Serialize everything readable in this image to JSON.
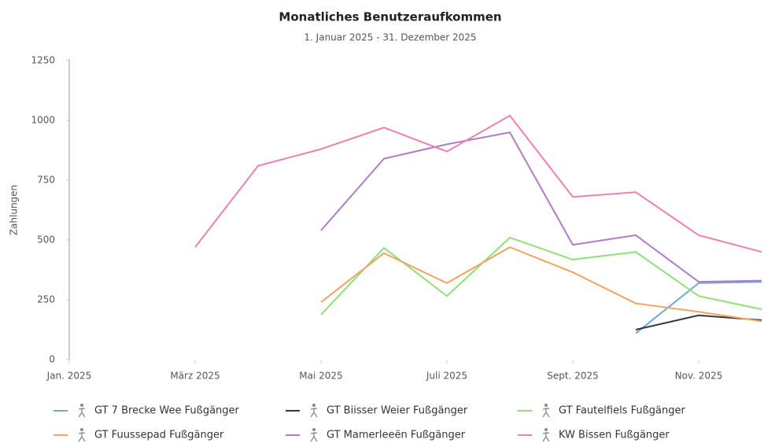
{
  "chart_data": {
    "type": "line",
    "title": "Monatliches Benutzeraufkommen",
    "subtitle": "1. Januar 2025 - 31. Dezember 2025",
    "y_label": "Zahlungen",
    "categories": [
      "Jan. 2025",
      null,
      "März 2025",
      null,
      "Mai 2025",
      null,
      "Juli 2025",
      null,
      "Sept. 2025",
      null,
      "Nov. 2025",
      null
    ],
    "ylim": [
      0,
      1250
    ],
    "yticks": [
      0,
      250,
      500,
      750,
      1000,
      1250
    ],
    "grid": false,
    "series": [
      {
        "name": "GT 7 Brecke Wee Fußgänger",
        "color": "#6fa8dc",
        "values": [
          null,
          null,
          null,
          null,
          null,
          null,
          null,
          null,
          null,
          110,
          320,
          325
        ]
      },
      {
        "name": "GT Biisser Weier Fußgänger",
        "color": "#333a45",
        "values": [
          null,
          null,
          null,
          null,
          null,
          null,
          null,
          null,
          null,
          125,
          185,
          165
        ]
      },
      {
        "name": "GT Fautelfiels Fußgänger",
        "color": "#8ee07a",
        "values": [
          null,
          null,
          null,
          null,
          188,
          467,
          266,
          510,
          418,
          450,
          266,
          210
        ]
      },
      {
        "name": "GT Fuussepad Fußgänger",
        "color": "#f4a261",
        "values": [
          null,
          null,
          null,
          null,
          240,
          445,
          320,
          470,
          365,
          235,
          200,
          160
        ]
      },
      {
        "name": "GT Mamerleeën Fußgänger",
        "color": "#b07cc6",
        "values": [
          null,
          null,
          null,
          null,
          540,
          840,
          900,
          950,
          480,
          520,
          325,
          330
        ]
      },
      {
        "name": "KW Bissen Fußgänger",
        "color": "#ee7fb3",
        "values": [
          null,
          null,
          470,
          810,
          880,
          970,
          870,
          1020,
          680,
          700,
          520,
          450
        ]
      }
    ]
  }
}
